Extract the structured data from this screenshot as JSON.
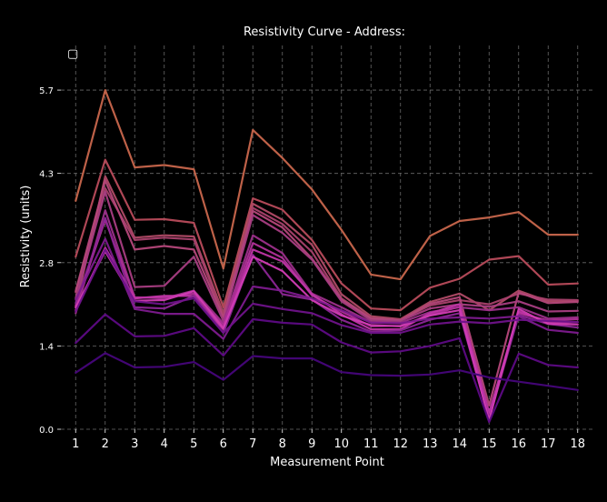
{
  "chart_data": {
    "type": "line",
    "title": "Resistivity Curve - Address:",
    "xlabel": "Measurement Point",
    "ylabel": "Resistivity (units)",
    "x": [
      1,
      2,
      3,
      4,
      5,
      6,
      7,
      8,
      9,
      10,
      11,
      12,
      13,
      14,
      15,
      16,
      17,
      18
    ],
    "xlim": [
      0.5,
      18.5
    ],
    "ylim": [
      0.0,
      6.45
    ],
    "yticks": [
      0.0,
      1.4,
      2.8,
      4.3,
      5.7
    ],
    "ytick_labels": [
      "0.0",
      "1.4",
      "2.8",
      "4.3",
      "5.7"
    ],
    "grid": true,
    "legend_placement": "top-left",
    "legend_marker": "▢",
    "colors": {
      "background": "#000000",
      "grid": "#6a6a6a",
      "text": "#ffffff"
    },
    "series": [
      {
        "color": "#c8664c",
        "values": [
          3.84,
          5.7,
          4.4,
          4.44,
          4.37,
          2.7,
          5.03,
          4.56,
          4.03,
          3.35,
          2.6,
          2.52,
          3.25,
          3.5,
          3.56,
          3.65,
          3.27,
          3.27
        ]
      },
      {
        "color": "#b84b5b",
        "values": [
          2.9,
          4.53,
          3.52,
          3.53,
          3.47,
          2.05,
          3.88,
          3.69,
          3.18,
          2.45,
          2.03,
          2.0,
          2.38,
          2.53,
          2.85,
          2.91,
          2.43,
          2.45
        ]
      },
      {
        "color": "#b04a66",
        "values": [
          2.05,
          4.25,
          3.22,
          3.26,
          3.24,
          1.95,
          3.79,
          3.52,
          3.1,
          2.27,
          1.9,
          1.85,
          2.14,
          2.28,
          2.0,
          2.33,
          2.15,
          2.16
        ]
      },
      {
        "color": "#a8406c",
        "values": [
          2.3,
          4.05,
          3.18,
          3.22,
          3.19,
          1.9,
          3.72,
          3.45,
          2.98,
          2.2,
          1.87,
          1.84,
          2.08,
          2.17,
          2.1,
          2.28,
          2.18,
          2.17
        ]
      },
      {
        "color": "#b5477a",
        "values": [
          2.32,
          4.18,
          3.02,
          3.08,
          3.02,
          1.88,
          3.67,
          3.39,
          2.87,
          2.18,
          1.86,
          1.83,
          2.11,
          2.22,
          0.4,
          2.3,
          2.12,
          2.14
        ]
      },
      {
        "color": "#a83d82",
        "values": [
          2.2,
          3.99,
          2.39,
          2.41,
          2.9,
          1.82,
          3.6,
          3.3,
          2.85,
          2.15,
          1.83,
          1.82,
          2.03,
          2.1,
          2.06,
          2.15,
          1.98,
          1.99
        ]
      },
      {
        "color": "#9c2f8a",
        "values": [
          1.95,
          3.68,
          2.22,
          2.2,
          2.33,
          1.78,
          3.26,
          2.96,
          2.28,
          2.05,
          1.8,
          1.79,
          1.97,
          2.05,
          2.0,
          2.05,
          1.86,
          1.88
        ]
      },
      {
        "color": "#b02f98",
        "values": [
          2.08,
          3.52,
          2.21,
          2.22,
          2.28,
          1.75,
          3.13,
          2.88,
          2.25,
          1.98,
          1.73,
          1.74,
          1.92,
          2.06,
          0.22,
          1.95,
          1.83,
          1.85
        ]
      },
      {
        "color": "#c035a6",
        "values": [
          2.0,
          3.05,
          2.2,
          2.24,
          2.24,
          1.68,
          3.02,
          2.82,
          2.27,
          1.93,
          1.68,
          1.68,
          1.95,
          2.1,
          0.28,
          1.98,
          1.79,
          1.8
        ]
      },
      {
        "color": "#8b2594",
        "values": [
          2.12,
          3.55,
          2.05,
          2.03,
          2.24,
          1.62,
          2.93,
          2.27,
          2.18,
          1.84,
          1.64,
          1.66,
          1.84,
          1.95,
          0.18,
          1.92,
          1.77,
          1.71
        ]
      },
      {
        "color": "#d13cb4",
        "values": [
          2.05,
          2.99,
          2.16,
          2.17,
          2.32,
          1.7,
          2.9,
          2.66,
          2.17,
          1.91,
          1.75,
          1.73,
          1.91,
          2.0,
          0.15,
          2.02,
          1.77,
          1.76
        ]
      },
      {
        "color": "#7d1a8e",
        "values": [
          2.18,
          3.2,
          2.02,
          1.94,
          1.94,
          1.52,
          2.4,
          2.33,
          2.2,
          2.0,
          1.79,
          1.78,
          1.86,
          1.88,
          1.86,
          1.9,
          1.67,
          1.62
        ]
      },
      {
        "color": "#6e1289",
        "values": [
          1.98,
          3.02,
          2.15,
          2.1,
          2.2,
          1.62,
          2.11,
          2.02,
          1.95,
          1.75,
          1.62,
          1.62,
          1.76,
          1.81,
          1.78,
          1.84,
          1.82,
          1.8
        ]
      },
      {
        "color": "#5d0a84",
        "values": [
          1.45,
          1.93,
          1.56,
          1.57,
          1.7,
          1.24,
          1.85,
          1.79,
          1.76,
          1.46,
          1.29,
          1.31,
          1.4,
          1.53,
          0.12,
          1.27,
          1.08,
          1.04
        ]
      },
      {
        "color": "#46057a",
        "values": [
          0.95,
          1.28,
          1.04,
          1.05,
          1.13,
          0.83,
          1.23,
          1.19,
          1.19,
          0.96,
          0.91,
          0.9,
          0.92,
          0.99,
          0.87,
          0.8,
          0.73,
          0.66
        ]
      }
    ]
  }
}
